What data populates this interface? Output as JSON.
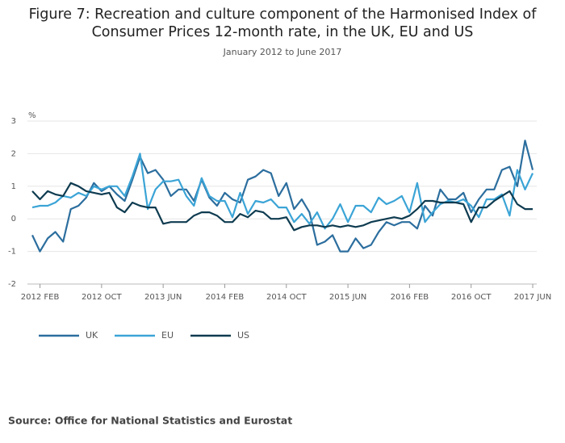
{
  "chart_data": {
    "type": "line",
    "title": [
      "Figure 7: Recreation and culture component of the Harmonised Index of",
      "Consumer Prices 12-month rate, in the UK, EU and US"
    ],
    "subtitle": "January 2012 to June 2017",
    "y_label": "%",
    "source": "Source: Office for National Statistics and Eurostat",
    "categories": [
      null,
      "2012 FEB",
      null,
      null,
      null,
      null,
      null,
      null,
      null,
      "2012 OCT",
      null,
      null,
      null,
      null,
      null,
      null,
      null,
      "2013 JUN",
      null,
      null,
      null,
      null,
      null,
      null,
      null,
      "2014 FEB",
      null,
      null,
      null,
      null,
      null,
      null,
      null,
      "2014 OCT",
      null,
      null,
      null,
      null,
      null,
      null,
      null,
      "2015 JUN",
      null,
      null,
      null,
      null,
      null,
      null,
      null,
      "2016 FEB",
      null,
      null,
      null,
      null,
      null,
      null,
      null,
      "2016 OCT",
      null,
      null,
      null,
      null,
      null,
      null,
      null,
      "2017 JUN"
    ],
    "ylim": [
      -2,
      3
    ],
    "yticks": [
      -2,
      -1,
      0,
      1,
      2,
      3
    ],
    "grid": true,
    "legend": "bottom",
    "series": [
      {
        "name": "UK",
        "color": "#2c6e9e",
        "values": [
          -0.5,
          -1.0,
          -0.6,
          -0.4,
          -0.7,
          0.3,
          0.4,
          0.65,
          1.1,
          0.85,
          1.0,
          0.75,
          0.55,
          1.2,
          1.9,
          1.4,
          1.5,
          1.2,
          0.7,
          0.9,
          0.9,
          0.55,
          1.2,
          0.65,
          0.4,
          0.8,
          0.6,
          0.5,
          1.2,
          1.3,
          1.5,
          1.4,
          0.7,
          1.1,
          0.3,
          0.6,
          0.2,
          -0.8,
          -0.7,
          -0.5,
          -1.0,
          -1.0,
          -0.6,
          -0.9,
          -0.8,
          -0.4,
          -0.1,
          -0.2,
          -0.1,
          -0.1,
          -0.3,
          0.4,
          0.1,
          0.9,
          0.6,
          0.6,
          0.8,
          0.2,
          0.6,
          0.9,
          0.9,
          1.5,
          1.6,
          1.0,
          2.4,
          1.5
        ]
      },
      {
        "name": "EU",
        "color": "#3ba4d6",
        "values": [
          0.35,
          0.4,
          0.4,
          0.5,
          0.7,
          0.65,
          0.8,
          0.7,
          1.0,
          0.9,
          1.0,
          1.0,
          0.7,
          1.3,
          2.0,
          0.3,
          0.9,
          1.15,
          1.15,
          1.2,
          0.7,
          0.4,
          1.25,
          0.7,
          0.55,
          0.55,
          0.05,
          0.8,
          0.15,
          0.55,
          0.5,
          0.6,
          0.35,
          0.35,
          -0.1,
          0.15,
          -0.15,
          0.2,
          -0.3,
          0.0,
          0.45,
          -0.1,
          0.4,
          0.4,
          0.2,
          0.65,
          0.45,
          0.55,
          0.7,
          0.2,
          1.1,
          -0.1,
          0.2,
          0.45,
          0.55,
          0.5,
          0.6,
          0.4,
          0.05,
          0.6,
          0.6,
          0.75,
          0.1,
          1.5,
          0.9,
          1.4
        ]
      },
      {
        "name": "US",
        "color": "#0e3b50",
        "values": [
          0.85,
          0.6,
          0.85,
          0.75,
          0.7,
          1.1,
          1.0,
          0.85,
          0.8,
          0.75,
          0.8,
          0.35,
          0.2,
          0.5,
          0.4,
          0.35,
          0.35,
          -0.15,
          -0.1,
          -0.1,
          -0.1,
          0.1,
          0.2,
          0.2,
          0.1,
          -0.1,
          -0.1,
          0.15,
          0.05,
          0.25,
          0.2,
          0.0,
          0.0,
          0.05,
          -0.35,
          -0.25,
          -0.2,
          -0.2,
          -0.25,
          -0.2,
          -0.25,
          -0.2,
          -0.25,
          -0.2,
          -0.1,
          -0.05,
          0.0,
          0.05,
          0.0,
          0.1,
          0.3,
          0.55,
          0.55,
          0.5,
          0.5,
          0.5,
          0.45,
          -0.1,
          0.35,
          0.35,
          0.55,
          0.7,
          0.85,
          0.45,
          0.3,
          0.3
        ]
      }
    ]
  }
}
